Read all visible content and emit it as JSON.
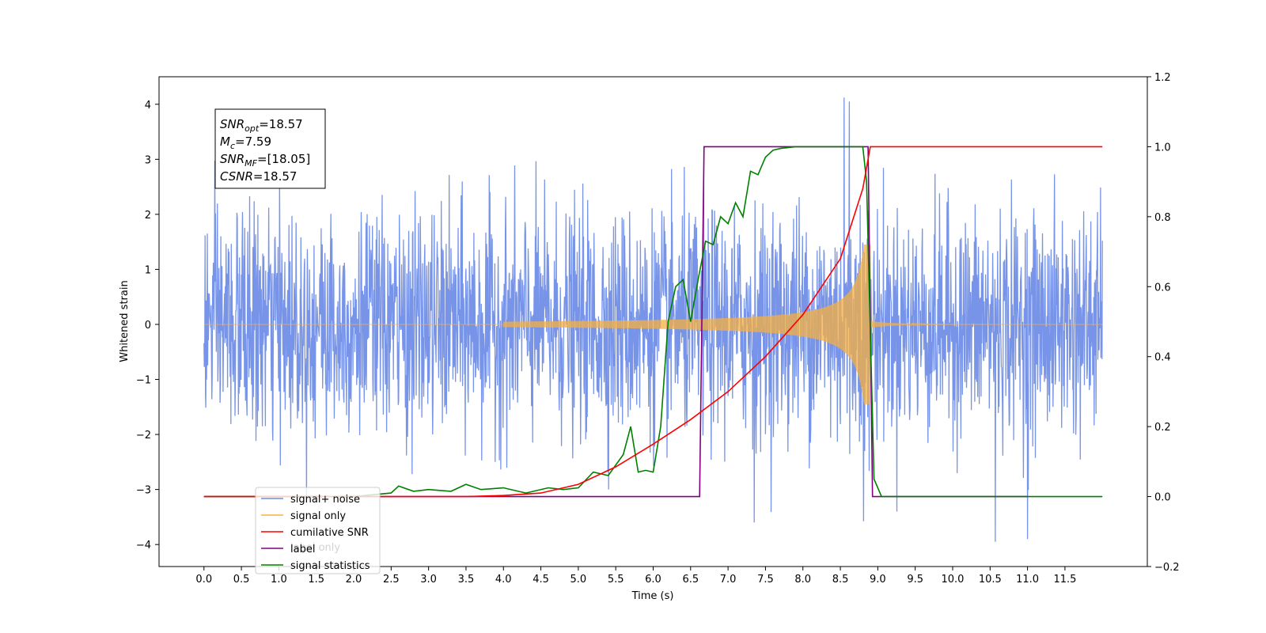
{
  "chart_data": {
    "type": "line",
    "title": "",
    "xlabel": "Time (s)",
    "ylabel": "Whitened strain",
    "xlim": [
      -0.6,
      12.6
    ],
    "ylim": [
      -4.4,
      4.5
    ],
    "y2lim": [
      -0.2,
      1.2
    ],
    "xticks": [
      "0.0",
      "0.5",
      "1.0",
      "1.5",
      "2.0",
      "2.5",
      "3.0",
      "3.5",
      "4.0",
      "4.5",
      "5.0",
      "5.5",
      "6.0",
      "6.5",
      "7.0",
      "7.5",
      "8.0",
      "8.5",
      "9.0",
      "9.5",
      "10.0",
      "10.5",
      "11.0",
      "11.5"
    ],
    "yticks": [
      "4",
      "3",
      "2",
      "1",
      "0",
      "−1",
      "−2",
      "−3",
      "−4"
    ],
    "y2ticks": [
      "1.2",
      "1.0",
      "0.8",
      "0.6",
      "0.4",
      "0.2",
      "0.0",
      "−0.2"
    ],
    "grid": false,
    "legend_position": "lower-left",
    "series": [
      {
        "name": "signal+ noise",
        "axis": "left",
        "color": "#6b8be6",
        "description_points": {
          "x_start": 0.0,
          "x_end": 12.0,
          "noise_sigma": 1.0,
          "peak_x": 8.55,
          "peak_y": 4.12,
          "min_y": -3.95
        }
      },
      {
        "name": "signal only",
        "axis": "left",
        "color": "#f5b041",
        "chirp": {
          "start": 4.0,
          "merge": 8.9,
          "max_amp": 1.45
        }
      },
      {
        "name": "cumilative SNR",
        "axis": "right",
        "color": "#ff0000",
        "x": [
          0.0,
          3.5,
          4.0,
          4.5,
          5.0,
          5.5,
          6.0,
          6.5,
          7.0,
          7.5,
          8.0,
          8.5,
          8.8,
          8.9,
          8.95,
          12.0
        ],
        "values": [
          0.0,
          0.0,
          0.003,
          0.01,
          0.035,
          0.085,
          0.15,
          0.22,
          0.3,
          0.4,
          0.52,
          0.68,
          0.88,
          1.0,
          1.0,
          1.0
        ]
      },
      {
        "name": "label",
        "axis": "right",
        "color": "#800080",
        "x": [
          0.0,
          6.62,
          6.68,
          8.87,
          8.93,
          11.0
        ],
        "values": [
          0.0,
          0.0,
          1.0,
          1.0,
          0.0,
          0.0
        ]
      },
      {
        "name": "signal statistics",
        "axis": "right",
        "color": "#008000",
        "x": [
          0.0,
          2.0,
          2.5,
          2.6,
          2.8,
          3.0,
          3.3,
          3.5,
          3.7,
          4.0,
          4.3,
          4.6,
          4.8,
          5.0,
          5.2,
          5.4,
          5.6,
          5.7,
          5.8,
          5.9,
          6.0,
          6.1,
          6.2,
          6.3,
          6.4,
          6.5,
          6.6,
          6.7,
          6.8,
          6.9,
          7.0,
          7.1,
          7.2,
          7.3,
          7.4,
          7.5,
          7.6,
          7.7,
          7.9,
          8.1,
          8.5,
          8.8,
          8.85,
          8.95,
          9.05,
          12.0
        ],
        "values": [
          0.0,
          0.0,
          0.01,
          0.03,
          0.015,
          0.02,
          0.015,
          0.035,
          0.02,
          0.025,
          0.01,
          0.025,
          0.02,
          0.025,
          0.07,
          0.06,
          0.12,
          0.2,
          0.07,
          0.075,
          0.07,
          0.2,
          0.5,
          0.6,
          0.62,
          0.5,
          0.62,
          0.73,
          0.72,
          0.8,
          0.78,
          0.84,
          0.8,
          0.93,
          0.92,
          0.97,
          0.99,
          0.995,
          1.0,
          1.0,
          1.0,
          1.0,
          0.9,
          0.05,
          0.0,
          0.0
        ]
      }
    ],
    "legend_entries": [
      "signal+ noise",
      "signal only",
      "cumilative SNR",
      "label",
      "signal statistics"
    ],
    "legend_ghost_text": [
      "label only"
    ],
    "annotation_box": {
      "lines": [
        {
          "sym": "SNR",
          "sub": "opt",
          "rest": "=18.57"
        },
        {
          "sym": "M",
          "sub": "c",
          "rest": "=7.59"
        },
        {
          "sym": "SNR",
          "sub": "MF",
          "rest": "=[18.05]"
        },
        {
          "sym": "CSNR",
          "sub": "",
          "rest": "=18.57"
        }
      ]
    }
  }
}
